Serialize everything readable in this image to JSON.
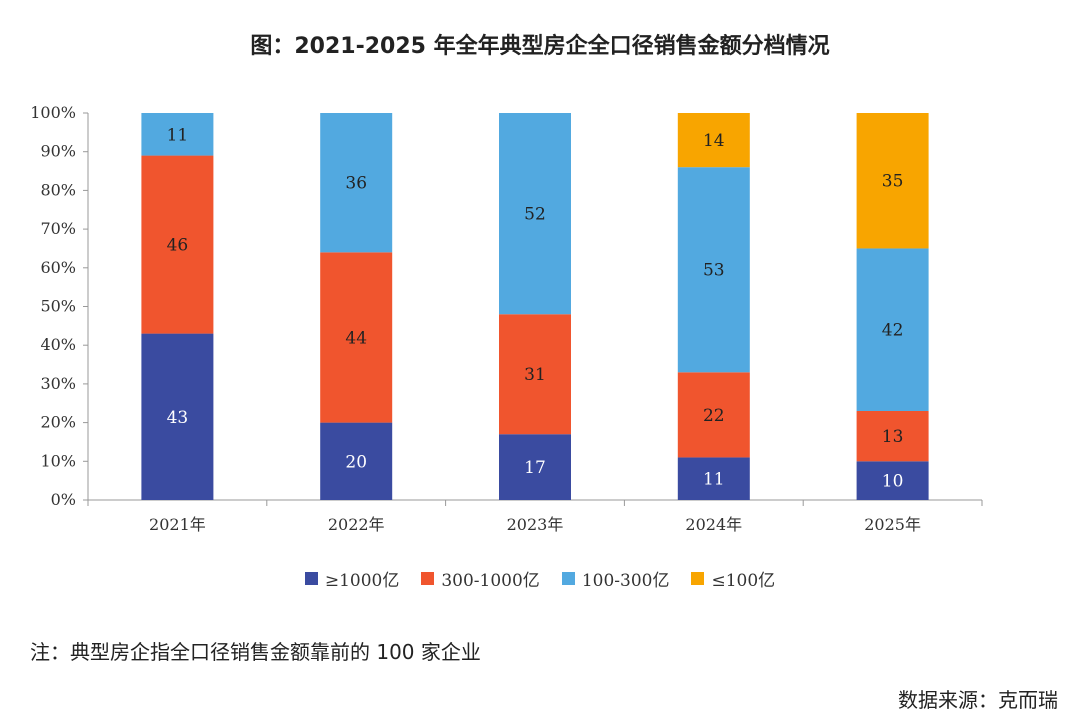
{
  "chart_data": {
    "type": "bar",
    "stacked": true,
    "title": "图：2021-2025 年全年典型房企全口径销售金额分档情况",
    "xlabel": "",
    "ylabel": "",
    "ylim": [
      0,
      100
    ],
    "y_unit": "%",
    "y_ticks": [
      "0%",
      "10%",
      "20%",
      "30%",
      "40%",
      "50%",
      "60%",
      "70%",
      "80%",
      "90%",
      "100%"
    ],
    "categories": [
      "2021年",
      "2022年",
      "2023年",
      "2024年",
      "2025年"
    ],
    "series": [
      {
        "name": "≥1000亿",
        "color": "#3a4ba0",
        "label_color": "#ffffff",
        "values": [
          43,
          20,
          17,
          11,
          10
        ]
      },
      {
        "name": "300-1000亿",
        "color": "#f0552e",
        "label_color": "#222222",
        "values": [
          46,
          44,
          31,
          22,
          13
        ]
      },
      {
        "name": "100-300亿",
        "color": "#52a9e0",
        "label_color": "#222222",
        "values": [
          11,
          36,
          52,
          53,
          42
        ]
      },
      {
        "name": "≤100亿",
        "color": "#f8a500",
        "label_color": "#222222",
        "values": [
          0,
          0,
          0,
          14,
          35
        ]
      }
    ],
    "legend_position": "bottom"
  },
  "note": "注：典型房企指全口径销售金额靠前的 100 家企业",
  "source": "数据来源：克而瑞"
}
